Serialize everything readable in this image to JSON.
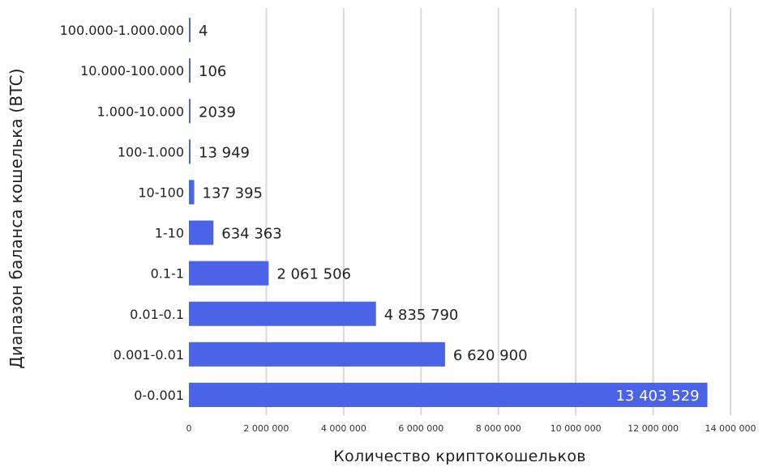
{
  "chart_data": {
    "type": "bar",
    "orientation": "horizontal",
    "categories": [
      "100.000-1.000.000",
      "10.000-100.000",
      "1.000-10.000",
      "100-1.000",
      "10-100",
      "1-10",
      "0.1-1",
      "0.01-0.1",
      "0.001-0.01",
      "0-0.001"
    ],
    "values": [
      4,
      106,
      2039,
      13949,
      137395,
      634363,
      2061506,
      4835790,
      6620900,
      13403529
    ],
    "value_labels": [
      "4",
      "106",
      "2039",
      "13 949",
      "137 395",
      "634 363",
      "2 061 506",
      "4 835 790",
      "6 620 900",
      "13 403 529"
    ],
    "xlabel": "Количество криптокошельков",
    "ylabel": "Диапазон баланса кошелька (BTC)",
    "xlim": [
      0,
      14000000
    ],
    "x_ticks": [
      0,
      2000000,
      4000000,
      6000000,
      8000000,
      10000000,
      12000000,
      14000000
    ],
    "x_tick_labels": [
      "0",
      "2 000 000",
      "4 000 000",
      "6 000 000",
      "8 000 000",
      "10 000 000",
      "12 000 000",
      "14 000 000"
    ],
    "grid": "vertical",
    "bar_color": "#4a63e7",
    "gridline_color": "#d9d9d9",
    "legend": "none"
  }
}
